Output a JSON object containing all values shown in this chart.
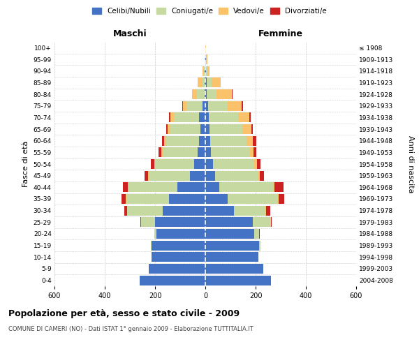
{
  "age_groups": [
    "0-4",
    "5-9",
    "10-14",
    "15-19",
    "20-24",
    "25-29",
    "30-34",
    "35-39",
    "40-44",
    "45-49",
    "50-54",
    "55-59",
    "60-64",
    "65-69",
    "70-74",
    "75-79",
    "80-84",
    "85-89",
    "90-94",
    "95-99",
    "100+"
  ],
  "birth_years": [
    "2004-2008",
    "1999-2003",
    "1994-1998",
    "1989-1993",
    "1984-1988",
    "1979-1983",
    "1974-1978",
    "1969-1973",
    "1964-1968",
    "1959-1963",
    "1954-1958",
    "1949-1953",
    "1944-1948",
    "1939-1943",
    "1934-1938",
    "1929-1933",
    "1924-1928",
    "1919-1923",
    "1914-1918",
    "1909-1913",
    "≤ 1908"
  ],
  "colors": {
    "celibi": "#4472C4",
    "coniugati": "#C5D9A0",
    "vedovi": "#F9C26B",
    "divorziati": "#CC2222"
  },
  "maschi": {
    "celibi": [
      260,
      225,
      215,
      215,
      195,
      200,
      170,
      145,
      110,
      60,
      45,
      30,
      25,
      20,
      25,
      10,
      3,
      3,
      2,
      1,
      1
    ],
    "coniugati": [
      0,
      0,
      0,
      2,
      8,
      55,
      140,
      170,
      195,
      165,
      155,
      140,
      130,
      120,
      100,
      65,
      30,
      12,
      5,
      2,
      0
    ],
    "vedovi": [
      0,
      0,
      0,
      0,
      0,
      0,
      2,
      1,
      2,
      2,
      3,
      5,
      8,
      10,
      15,
      15,
      20,
      15,
      5,
      1,
      0
    ],
    "divorziati": [
      0,
      0,
      0,
      0,
      0,
      2,
      10,
      18,
      20,
      15,
      15,
      10,
      10,
      5,
      4,
      3,
      1,
      0,
      0,
      0,
      0
    ]
  },
  "femmine": {
    "celibi": [
      260,
      230,
      210,
      215,
      195,
      190,
      115,
      90,
      55,
      40,
      30,
      22,
      20,
      18,
      15,
      10,
      5,
      5,
      2,
      2,
      1
    ],
    "coniugati": [
      0,
      0,
      0,
      5,
      20,
      70,
      125,
      200,
      215,
      170,
      165,
      155,
      145,
      130,
      115,
      80,
      40,
      20,
      5,
      2,
      0
    ],
    "vedovi": [
      0,
      0,
      0,
      0,
      0,
      0,
      2,
      3,
      5,
      8,
      10,
      15,
      25,
      35,
      45,
      55,
      60,
      35,
      10,
      3,
      1
    ],
    "divorziati": [
      0,
      0,
      0,
      0,
      2,
      5,
      15,
      20,
      35,
      15,
      15,
      12,
      12,
      5,
      5,
      5,
      2,
      0,
      0,
      0,
      0
    ]
  },
  "title": "Popolazione per età, sesso e stato civile - 2009",
  "subtitle": "COMUNE DI CAMERI (NO) - Dati ISTAT 1° gennaio 2009 - Elaborazione TUTTITALIA.IT",
  "xlabel_left": "Maschi",
  "xlabel_right": "Femmine",
  "ylabel_left": "Fasce di età",
  "ylabel_right": "Anni di nascita",
  "legend_labels": [
    "Celibi/Nubili",
    "Coniugati/e",
    "Vedovi/e",
    "Divorziati/e"
  ],
  "xlim": 600,
  "background_color": "#ffffff",
  "grid_color": "#cccccc"
}
